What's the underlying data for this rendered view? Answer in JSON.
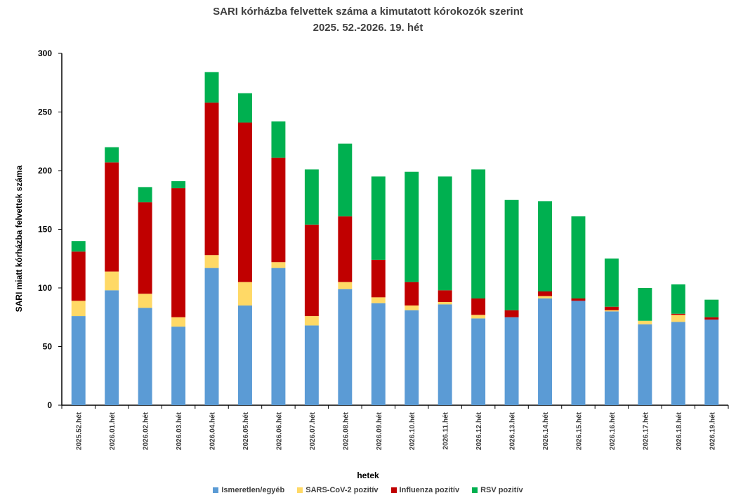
{
  "chart_data": {
    "type": "bar",
    "stacked": true,
    "title": "SARI kórházba felvettek száma a kimutatott kórokozók szerint",
    "subtitle": "2025. 52.-2026. 19. hét",
    "xlabel": "hetek",
    "ylabel": "SARI miatt kórházba felvettek száma",
    "ylim": [
      0,
      300
    ],
    "yticks": [
      "0",
      "50",
      "100",
      "150",
      "200",
      "250",
      "300"
    ],
    "grid": false,
    "legend_position": "bottom",
    "categories": [
      "2025.52.hét",
      "2026.01.hét",
      "2026.02.hét",
      "2026.03.hét",
      "2026.04.hét",
      "2026.05.hét",
      "2026.06.hét",
      "2026.07.hét",
      "2026.08.hét",
      "2026.09.hét",
      "2026.10.hét",
      "2026.11.hét",
      "2026.12.hét",
      "2026.13.hét",
      "2026.14.hét",
      "2026.15.hét",
      "2026.16.hét",
      "2026.17.hét",
      "2026.18.hét",
      "2026.19.hét"
    ],
    "series": [
      {
        "name": "Ismeretlen/egyéb",
        "color": "#5B9BD5",
        "values": [
          76,
          98,
          83,
          67,
          117,
          85,
          117,
          68,
          99,
          87,
          81,
          86,
          74,
          75,
          91,
          89,
          80,
          69,
          71,
          73
        ]
      },
      {
        "name": "SARS-CoV-2 pozitív",
        "color": "#FFD966",
        "values": [
          13,
          16,
          12,
          8,
          11,
          20,
          5,
          8,
          6,
          5,
          4,
          2,
          3,
          0,
          2,
          0,
          1,
          3,
          6,
          0
        ]
      },
      {
        "name": "Influenza pozitív",
        "color": "#C00000",
        "values": [
          42,
          93,
          78,
          110,
          130,
          136,
          89,
          78,
          56,
          32,
          20,
          10,
          14,
          6,
          4,
          2,
          3,
          0,
          1,
          2
        ]
      },
      {
        "name": "RSV pozitív",
        "color": "#00B050",
        "values": [
          9,
          13,
          13,
          6,
          26,
          25,
          31,
          47,
          62,
          71,
          94,
          97,
          110,
          94,
          77,
          70,
          41,
          28,
          25,
          15
        ]
      }
    ]
  }
}
